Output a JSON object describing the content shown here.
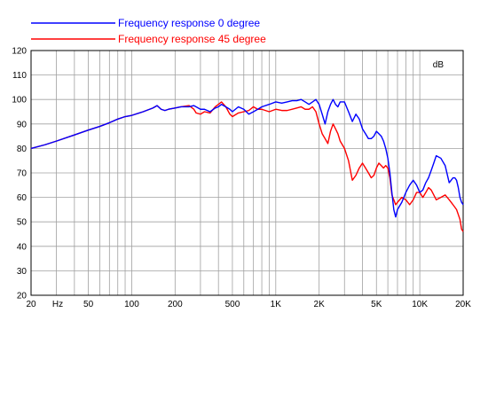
{
  "chart_data": {
    "type": "line",
    "title": "",
    "xlabel": "",
    "ylabel": "",
    "x_scale": "log",
    "xlim": [
      20,
      20000
    ],
    "ylim": [
      20,
      120
    ],
    "y_unit": "dB",
    "x_unit": "Hz",
    "grid": true,
    "legend": "top-left",
    "x_ticks": [
      {
        "value": 20,
        "label": "20"
      },
      {
        "value": 50,
        "label": "50"
      },
      {
        "value": 100,
        "label": "100"
      },
      {
        "value": 200,
        "label": "200"
      },
      {
        "value": 500,
        "label": "500"
      },
      {
        "value": 1000,
        "label": "1K"
      },
      {
        "value": 2000,
        "label": "2K"
      },
      {
        "value": 5000,
        "label": "5K"
      },
      {
        "value": 10000,
        "label": "10K"
      },
      {
        "value": 20000,
        "label": "20K"
      }
    ],
    "y_ticks": [
      20,
      30,
      40,
      50,
      60,
      70,
      80,
      90,
      100,
      110,
      120
    ],
    "series": [
      {
        "name": "Frequency response 0 degree",
        "color": "#0000ff",
        "x": [
          20,
          25,
          30,
          40,
          50,
          60,
          70,
          80,
          90,
          100,
          120,
          140,
          150,
          160,
          170,
          180,
          200,
          220,
          250,
          270,
          280,
          300,
          320,
          350,
          380,
          400,
          420,
          450,
          480,
          500,
          550,
          600,
          650,
          700,
          750,
          800,
          900,
          1000,
          1100,
          1200,
          1300,
          1400,
          1500,
          1600,
          1700,
          1800,
          1900,
          2000,
          2100,
          2200,
          2300,
          2400,
          2500,
          2600,
          2700,
          2800,
          3000,
          3200,
          3400,
          3600,
          3800,
          4000,
          4200,
          4400,
          4600,
          4800,
          5000,
          5200,
          5400,
          5600,
          5800,
          6000,
          6200,
          6400,
          6600,
          6800,
          7000,
          7500,
          8000,
          8500,
          9000,
          9500,
          10000,
          10500,
          11000,
          11500,
          12000,
          12500,
          13000,
          14000,
          15000,
          16000,
          16500,
          17000,
          17500,
          18000,
          18500,
          19000,
          19500,
          20000
        ],
        "values": [
          80,
          81.5,
          83,
          85.5,
          87.5,
          89,
          90.5,
          92,
          93,
          93.5,
          95,
          96.5,
          97.5,
          96,
          95.5,
          96,
          96.5,
          97,
          97,
          97.5,
          97,
          96,
          96,
          95,
          96.5,
          97,
          98,
          97,
          96,
          95,
          97,
          96,
          94,
          95,
          96,
          97,
          98,
          99,
          98.5,
          99,
          99.5,
          99.5,
          100,
          99,
          98,
          99,
          100,
          98,
          94,
          90,
          95,
          98,
          100,
          98,
          97,
          99,
          99,
          95,
          91,
          94,
          92,
          88,
          86,
          84,
          84,
          85,
          87,
          86,
          85,
          83,
          80,
          76,
          70,
          62,
          55,
          52,
          55,
          58,
          62,
          65,
          67,
          65,
          62,
          63,
          66,
          68,
          71,
          74,
          77,
          76,
          73,
          66,
          67,
          68,
          68,
          67,
          64,
          60,
          58,
          57
        ]
      },
      {
        "name": "Frequency response 45 degree",
        "color": "#ff0000",
        "x": [
          20,
          25,
          30,
          40,
          50,
          60,
          70,
          80,
          90,
          100,
          120,
          140,
          150,
          160,
          170,
          180,
          200,
          220,
          250,
          270,
          280,
          300,
          320,
          350,
          380,
          400,
          420,
          450,
          480,
          500,
          550,
          600,
          650,
          700,
          750,
          800,
          900,
          1000,
          1100,
          1200,
          1300,
          1400,
          1500,
          1600,
          1700,
          1800,
          1900,
          2000,
          2100,
          2200,
          2300,
          2400,
          2500,
          2600,
          2700,
          2800,
          3000,
          3200,
          3400,
          3600,
          3800,
          4000,
          4200,
          4400,
          4600,
          4800,
          5000,
          5200,
          5400,
          5600,
          5800,
          6000,
          6200,
          6400,
          6600,
          6800,
          7000,
          7500,
          8000,
          8500,
          9000,
          9500,
          10000,
          10500,
          11000,
          11500,
          12000,
          12500,
          13000,
          14000,
          15000,
          16000,
          16500,
          17000,
          17500,
          18000,
          18500,
          19000,
          19500,
          20000
        ],
        "values": [
          80,
          81.5,
          83,
          85.5,
          87.5,
          89,
          90.5,
          92,
          93,
          93.5,
          95,
          96.5,
          97.5,
          96,
          95.5,
          96,
          96.5,
          97,
          97.5,
          96,
          94.5,
          94,
          95,
          94.5,
          97,
          98,
          99,
          97,
          94,
          93,
          94.5,
          95,
          95.5,
          97,
          96,
          96,
          95,
          96,
          95.5,
          95.5,
          96,
          96.5,
          97,
          96,
          96,
          97,
          95,
          90,
          86,
          84,
          82,
          87,
          90,
          88,
          86,
          83,
          80,
          75,
          67,
          69,
          72,
          74,
          72,
          70,
          68,
          69,
          72,
          74,
          73,
          72,
          73,
          72,
          68,
          61,
          59,
          57,
          58,
          60,
          59,
          57,
          59,
          62,
          62,
          60,
          62,
          64,
          63,
          61,
          59,
          60,
          61,
          59,
          58,
          57,
          56,
          55,
          53,
          51,
          47,
          46
        ]
      }
    ]
  }
}
